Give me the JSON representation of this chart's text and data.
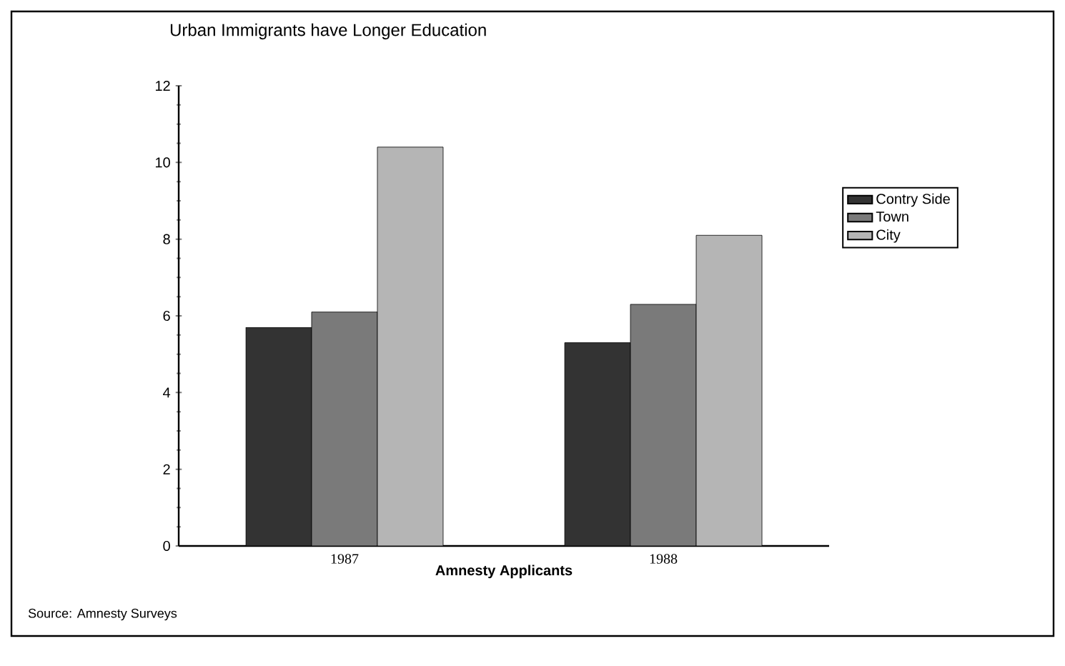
{
  "chart_data": {
    "type": "bar",
    "title": "Urban Immigrants have Longer Education",
    "xlabel": "Amnesty Applicants",
    "annotations": [
      "Source: Amnesty Surveys"
    ],
    "categories": [
      "1987",
      "1988"
    ],
    "series": [
      {
        "name": "Contry Side",
        "color": "#333333",
        "values": [
          5.7,
          5.3
        ]
      },
      {
        "name": "Town",
        "color": "#7a7a7a",
        "values": [
          6.1,
          6.3
        ]
      },
      {
        "name": "City",
        "color": "#b5b5b5",
        "values": [
          10.4,
          8.1
        ]
      }
    ],
    "ylim": [
      0,
      12
    ],
    "yticks": [
      0,
      2,
      4,
      6,
      8,
      10,
      12
    ],
    "legend": "right"
  }
}
